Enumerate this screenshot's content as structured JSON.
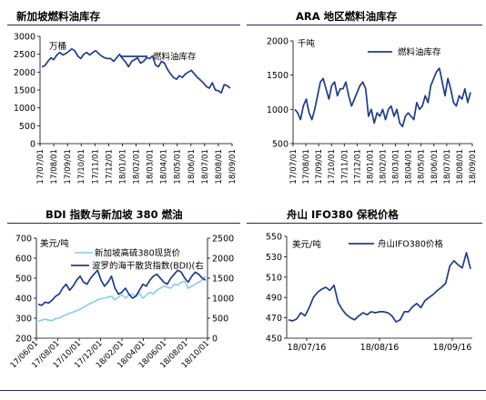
{
  "colors": {
    "dark_line": "#1F3D8C",
    "light_line": "#87CEEB",
    "rule": "#1F2D5A"
  },
  "panels": {
    "sg_fuel": {
      "title": "新加坡燃料油库存",
      "unit": "万桶",
      "legend": "燃料油库存"
    },
    "ara": {
      "title": "ARA 地区燃料油库存",
      "unit": "千吨",
      "legend": "燃料油库存"
    },
    "bdi": {
      "title": "BDI 指数与新加坡 380 燃油",
      "unit": "美元/吨",
      "legend_light": "新加坡高硫380现货价",
      "legend_dark": "波罗的海干散货指数(BDI)(右"
    },
    "zhoushan": {
      "title": "舟山 IFO380 保税价格",
      "unit": "美元/吨",
      "legend": "舟山IFO380价格"
    }
  },
  "chart_data": [
    {
      "type": "line",
      "title": "新加坡燃料油库存",
      "ylabel": "万桶",
      "ylim": [
        0,
        3000
      ],
      "yticks": [
        0,
        500,
        1000,
        1500,
        2000,
        2500,
        3000
      ],
      "xticks": [
        "17/07/01",
        "17/08/01",
        "17/09/01",
        "17/10/01",
        "17/11/01",
        "17/12/01",
        "18/01/01",
        "18/02/01",
        "18/03/01",
        "18/04/01",
        "18/05/01",
        "18/06/01",
        "18/07/01",
        "18/08/01",
        "18/09/01"
      ],
      "series": [
        {
          "name": "燃料油库存",
          "values": [
            2150,
            2180,
            2300,
            2400,
            2350,
            2480,
            2550,
            2480,
            2520,
            2580,
            2650,
            2600,
            2450,
            2380,
            2500,
            2550,
            2480,
            2550,
            2600,
            2520,
            2450,
            2400,
            2380,
            2380,
            2300,
            2400,
            2500,
            2380,
            2280,
            2150,
            2300,
            2350,
            2400,
            2250,
            2300,
            2400,
            2380,
            2450,
            2200,
            2150,
            2300,
            2250,
            2080,
            1950,
            1850,
            1800,
            1900,
            1850,
            1950,
            2000,
            2050,
            1950,
            1850,
            1780,
            1700,
            1600,
            1550,
            1700,
            1500,
            1480,
            1420,
            1650,
            1620,
            1550
          ]
        }
      ]
    },
    {
      "type": "line",
      "title": "ARA 地区燃料油库存",
      "ylabel": "千吨",
      "ylim": [
        500,
        2000
      ],
      "yticks": [
        500,
        1000,
        1500,
        2000
      ],
      "xticks": [
        "17/07/01",
        "17/08/01",
        "17/09/01",
        "17/10/01",
        "17/11/01",
        "17/12/01",
        "18/01/01",
        "18/02/01",
        "18/03/01",
        "18/04/01",
        "18/05/01",
        "18/06/01",
        "18/07/01",
        "18/08/01",
        "18/09/01"
      ],
      "series": [
        {
          "name": "燃料油库存",
          "values": [
            1000,
            950,
            850,
            1050,
            1150,
            950,
            850,
            1000,
            1200,
            1400,
            1450,
            1300,
            1150,
            1350,
            1400,
            1200,
            1300,
            1300,
            1400,
            1200,
            1050,
            1150,
            1250,
            1350,
            1400,
            1300,
            900,
            1000,
            800,
            950,
            900,
            1000,
            850,
            1000,
            1050,
            900,
            1000,
            800,
            750,
            900,
            950,
            900,
            850,
            1100,
            1000,
            1050,
            1200,
            1100,
            1350,
            1450,
            1550,
            1600,
            1400,
            1200,
            1450,
            1300,
            1100,
            1050,
            1200,
            1150,
            1300,
            1100,
            1250
          ]
        }
      ]
    },
    {
      "type": "line",
      "title": "BDI 指数与新加坡 380 燃油",
      "ylabel": "美元/吨",
      "ylim": [
        200,
        700
      ],
      "yticks": [
        200,
        300,
        400,
        500,
        600,
        700
      ],
      "y2lim": [
        0,
        2500
      ],
      "y2ticks": [
        0,
        500,
        1000,
        1500,
        2000,
        2500
      ],
      "xticks": [
        "17/06/01",
        "17/08/01",
        "17/10/01",
        "17/12/01",
        "18/02/01",
        "18/04/01",
        "18/06/01",
        "18/08/01",
        "18/10/01"
      ],
      "series": [
        {
          "name": "新加坡高硫380现货价",
          "axis": "left",
          "values": [
            285,
            290,
            295,
            290,
            288,
            298,
            300,
            310,
            318,
            325,
            330,
            338,
            345,
            355,
            365,
            375,
            382,
            392,
            398,
            400,
            405,
            410,
            392,
            405,
            418,
            400,
            415,
            420,
            410,
            425,
            400,
            415,
            430,
            420,
            440,
            450,
            460,
            455,
            450,
            470,
            465,
            480,
            485,
            450,
            460,
            470,
            480,
            490,
            510
          ]
        },
        {
          "name": "波罗的海干散货指数(BDI)(右",
          "axis": "right",
          "values": [
            850,
            820,
            900,
            880,
            950,
            1050,
            1100,
            1250,
            1350,
            1200,
            1300,
            1450,
            1550,
            1400,
            1350,
            1500,
            1600,
            1700,
            1450,
            1300,
            1400,
            1550,
            1250,
            1100,
            1150,
            1250,
            1100,
            1000,
            1050,
            1200,
            1350,
            1300,
            1450,
            1550,
            1600,
            1500,
            1400,
            1350,
            1500,
            1600,
            1700,
            1650,
            1500,
            1400,
            1550,
            1650,
            1600,
            1500,
            1450
          ]
        }
      ]
    },
    {
      "type": "line",
      "title": "舟山 IFO380 保税价格",
      "ylabel": "美元/吨",
      "ylim": [
        450,
        550
      ],
      "yticks": [
        450,
        470,
        490,
        510,
        530,
        550
      ],
      "xticks": [
        "18/07/16",
        "18/08/16",
        "18/09/16"
      ],
      "series": [
        {
          "name": "舟山IFO380价格",
          "values": [
            468,
            467,
            469,
            475,
            472,
            480,
            490,
            495,
            498,
            500,
            497,
            502,
            485,
            478,
            473,
            470,
            468,
            472,
            475,
            473,
            476,
            475,
            476,
            476,
            475,
            472,
            466,
            468,
            476,
            476,
            481,
            484,
            480,
            487,
            490,
            493,
            497,
            500,
            504,
            521,
            526,
            522,
            519,
            534,
            518
          ]
        }
      ]
    }
  ]
}
